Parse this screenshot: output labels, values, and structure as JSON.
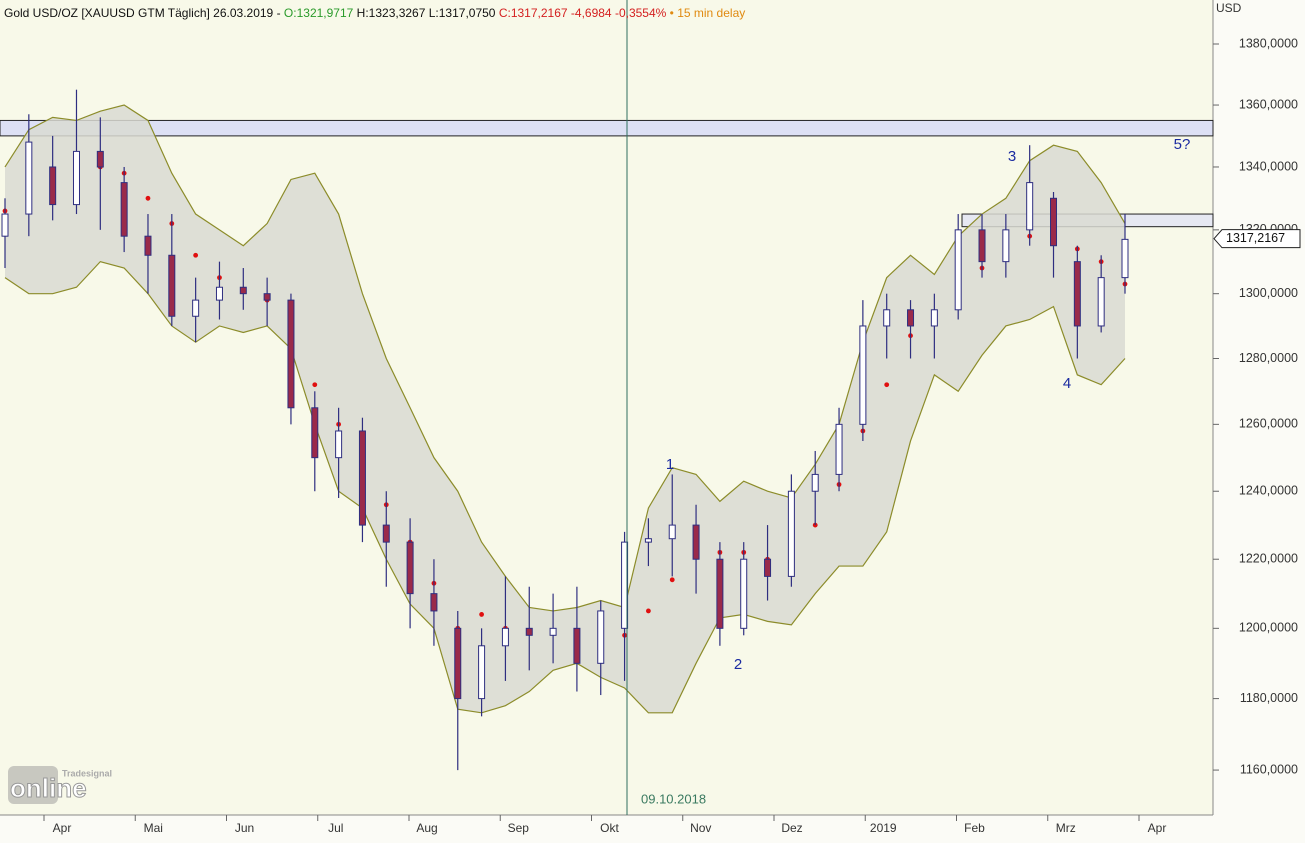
{
  "header": {
    "instrument": "Gold USD/OZ [XAUUSD GTM Täglich]",
    "date": "26.03.2019",
    "separator": "-",
    "open": "O:1321,9717",
    "high": "H:1323,3267",
    "low": "L:1317,0750",
    "close": "C:1317,2167",
    "change": "-4,6984",
    "change_pct": "-0,3554%",
    "delay": "• 15 min delay"
  },
  "logo": {
    "brand": "Tradesignal",
    "product": "online"
  },
  "chart_data": {
    "type": "candlestick",
    "log_scale": true,
    "y_unit": "USD",
    "ylim": [
      1147.6,
      1394.6
    ],
    "yticks": [
      {
        "value": 1160,
        "label": "1160,0000"
      },
      {
        "value": 1180,
        "label": "1180,0000"
      },
      {
        "value": 1200,
        "label": "1200,0000"
      },
      {
        "value": 1220,
        "label": "1220,0000"
      },
      {
        "value": 1240,
        "label": "1240,0000"
      },
      {
        "value": 1260,
        "label": "1260,0000"
      },
      {
        "value": 1280,
        "label": "1280,0000"
      },
      {
        "value": 1300,
        "label": "1300,0000"
      },
      {
        "value": 1320,
        "label": "1320,0000"
      },
      {
        "value": 1340,
        "label": "1340,0000"
      },
      {
        "value": 1360,
        "label": "1360,0000"
      },
      {
        "value": 1380,
        "label": "1380,0000"
      }
    ],
    "months": [
      "Apr",
      "Mai",
      "Jun",
      "Jul",
      "Aug",
      "Sep",
      "Okt",
      "Nov",
      "Dez",
      "2019",
      "Feb",
      "Mrz",
      "Apr"
    ],
    "open": [
      1318,
      1325,
      1340,
      1328,
      1345,
      1335,
      1318,
      1312,
      1293,
      1298,
      1302,
      1300,
      1298,
      1265,
      1250,
      1258,
      1230,
      1225,
      1210,
      1200,
      1180,
      1195,
      1200,
      1198,
      1200,
      1190,
      1200,
      1225,
      1226,
      1230,
      1220,
      1200,
      1220,
      1215,
      1240,
      1245,
      1260,
      1290,
      1295,
      1290,
      1295,
      1320,
      1310,
      1320,
      1330,
      1310,
      1290,
      1305
    ],
    "high": [
      1330,
      1357,
      1350,
      1365,
      1356,
      1340,
      1325,
      1325,
      1305,
      1310,
      1308,
      1305,
      1300,
      1270,
      1265,
      1262,
      1240,
      1232,
      1220,
      1205,
      1200,
      1215,
      1212,
      1210,
      1212,
      1208,
      1228,
      1232,
      1245,
      1236,
      1225,
      1225,
      1230,
      1245,
      1252,
      1265,
      1298,
      1300,
      1298,
      1300,
      1325,
      1325,
      1325,
      1347,
      1332,
      1315,
      1312,
      1325
    ],
    "low": [
      1308,
      1318,
      1323,
      1325,
      1320,
      1313,
      1300,
      1290,
      1285,
      1292,
      1295,
      1290,
      1260,
      1240,
      1238,
      1225,
      1212,
      1200,
      1195,
      1160,
      1175,
      1185,
      1188,
      1190,
      1182,
      1181,
      1185,
      1218,
      1215,
      1210,
      1195,
      1198,
      1208,
      1212,
      1230,
      1240,
      1255,
      1280,
      1280,
      1280,
      1292,
      1305,
      1305,
      1315,
      1305,
      1280,
      1288,
      1300
    ],
    "close": [
      1325,
      1348,
      1328,
      1345,
      1340,
      1318,
      1312,
      1293,
      1298,
      1302,
      1300,
      1298,
      1265,
      1250,
      1258,
      1230,
      1225,
      1210,
      1205,
      1180,
      1195,
      1200,
      1198,
      1200,
      1190,
      1205,
      1225,
      1226,
      1230,
      1220,
      1200,
      1220,
      1215,
      1240,
      1245,
      1260,
      1290,
      1295,
      1290,
      1295,
      1320,
      1310,
      1320,
      1335,
      1315,
      1290,
      1305,
      1317
    ],
    "bollinger_upper": [
      1340,
      1352,
      1356,
      1355,
      1358,
      1360,
      1355,
      1338,
      1325,
      1320,
      1315,
      1322,
      1336,
      1338,
      1325,
      1300,
      1280,
      1265,
      1250,
      1240,
      1225,
      1215,
      1206,
      1205,
      1206,
      1208,
      1206,
      1235,
      1247,
      1245,
      1237,
      1243,
      1240,
      1238,
      1248,
      1260,
      1285,
      1305,
      1312,
      1306,
      1318,
      1325,
      1330,
      1342,
      1347,
      1345,
      1335,
      1322
    ],
    "bollinger_lower": [
      1305,
      1300,
      1300,
      1302,
      1310,
      1308,
      1300,
      1290,
      1285,
      1290,
      1288,
      1290,
      1283,
      1260,
      1240,
      1235,
      1220,
      1207,
      1200,
      1177,
      1176,
      1178,
      1182,
      1188,
      1190,
      1186,
      1183,
      1176,
      1176,
      1190,
      1203,
      1204,
      1202,
      1201,
      1210,
      1218,
      1218,
      1228,
      1255,
      1275,
      1270,
      1281,
      1290,
      1292,
      1296,
      1275,
      1272,
      1280
    ],
    "sar": [
      1326,
      1327,
      1330,
      1335,
      1340,
      1338,
      1330,
      1322,
      1312,
      1305,
      1301,
      1298,
      1288,
      1272,
      1260,
      1248,
      1236,
      1225,
      1213,
      1200,
      1204,
      1200,
      1199,
      1199,
      1198,
      1197,
      1198,
      1205,
      1214,
      1223,
      1222,
      1222,
      1220,
      1222,
      1230,
      1242,
      1258,
      1272,
      1287,
      1292,
      1298,
      1308,
      1313,
      1318,
      1322,
      1314,
      1310,
      1303
    ],
    "zones": [
      {
        "low": 1350,
        "high": 1355
      },
      {
        "low": 1321,
        "high": 1325
      }
    ],
    "last_price": {
      "value": 1317.2167,
      "label": "1317,2167"
    },
    "vline_label": "09.10.2018",
    "wave_labels": [
      "1",
      "2",
      "3",
      "4",
      "5?"
    ]
  }
}
